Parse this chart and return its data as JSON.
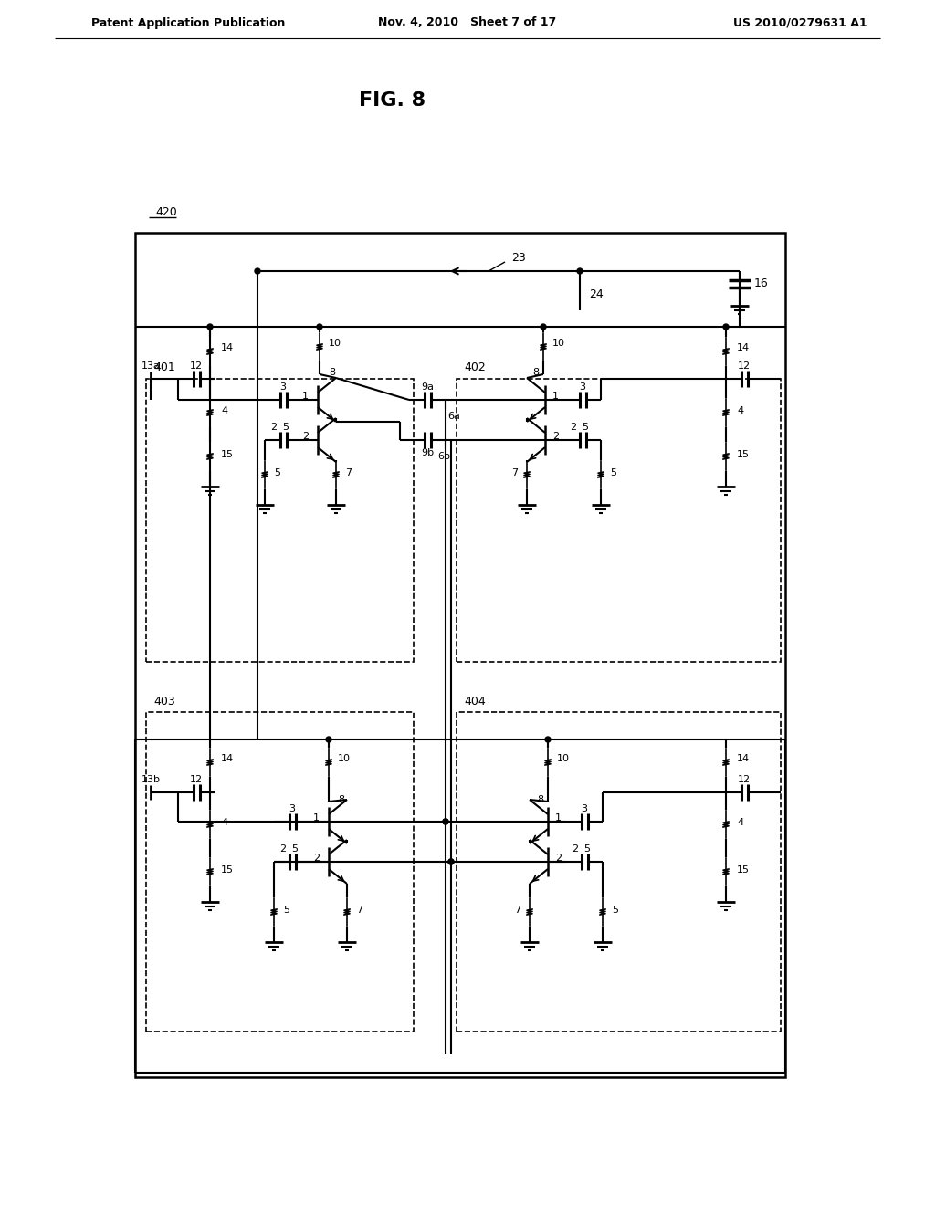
{
  "header_left": "Patent Application Publication",
  "header_center": "Nov. 4, 2010   Sheet 7 of 17",
  "header_right": "US 2010/0279631 A1",
  "fig_label": "FIG. 8",
  "bg_color": "#ffffff",
  "line_color": "#000000"
}
